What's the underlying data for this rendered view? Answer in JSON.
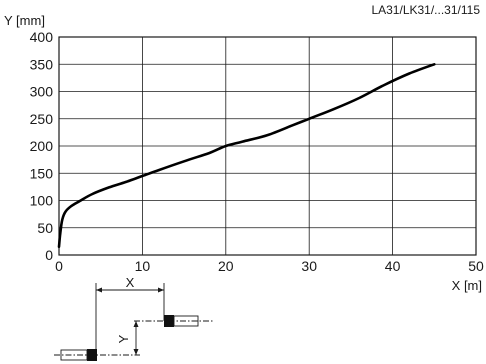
{
  "reference": "LA31/LK31/...31/115",
  "chart_data": {
    "type": "line",
    "xlabel": "X [m]",
    "ylabel": "Y [mm]",
    "xlim": [
      0,
      50
    ],
    "ylim": [
      0,
      400
    ],
    "x_ticks": [
      0,
      10,
      20,
      30,
      40,
      50
    ],
    "y_ticks": [
      0,
      50,
      100,
      150,
      200,
      250,
      300,
      350,
      400
    ],
    "grid": true,
    "series": [
      {
        "x": [
          0,
          0.15,
          0.4,
          0.8,
          1.5,
          2.5,
          4,
          6,
          8,
          10,
          12,
          15,
          18,
          20,
          22,
          25,
          28,
          30,
          33,
          36,
          39,
          42,
          45
        ],
        "y": [
          15,
          40,
          65,
          80,
          90,
          99,
          112,
          124,
          134,
          145,
          156,
          172,
          187,
          200,
          208,
          220,
          238,
          250,
          268,
          288,
          312,
          333,
          350
        ]
      }
    ]
  },
  "diagram": {
    "x_label": "X",
    "y_label": "Y"
  }
}
